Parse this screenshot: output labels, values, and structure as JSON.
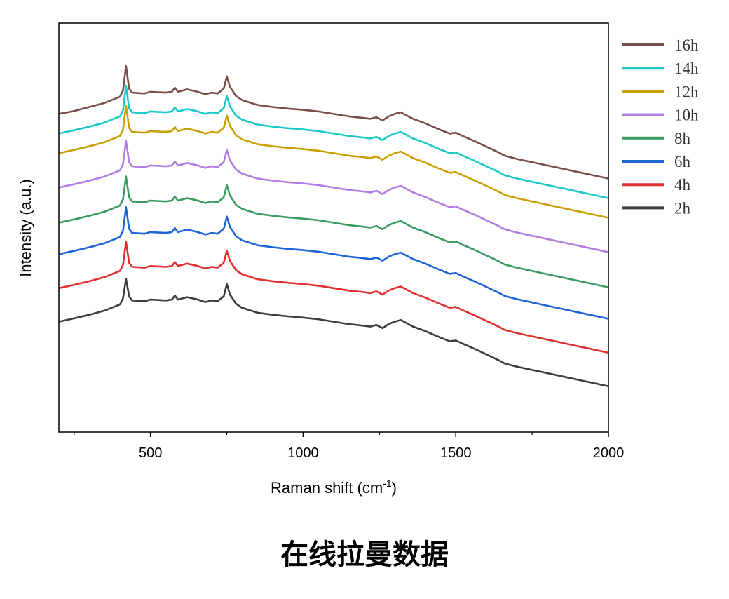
{
  "caption": "在线拉曼数据",
  "chart_data": {
    "type": "line",
    "title": "",
    "xlabel": "Raman shift (cm-1)",
    "xlabel_main": "Raman shift (cm",
    "xlabel_sup": "-1",
    "xlabel_close": ")",
    "ylabel": "Intensity (a.u.)",
    "xlim": [
      200,
      2000
    ],
    "xticks": [
      500,
      1000,
      1500,
      2000
    ],
    "xtick_labels": [
      "500",
      "1000",
      "1500",
      "2000"
    ],
    "y_ticks_shown": false,
    "grid": false,
    "legend_position": "right",
    "x": [
      200,
      250,
      300,
      350,
      400,
      410,
      420,
      430,
      440,
      480,
      500,
      550,
      570,
      580,
      590,
      620,
      650,
      680,
      700,
      720,
      740,
      750,
      760,
      780,
      800,
      850,
      900,
      950,
      1000,
      1050,
      1100,
      1150,
      1200,
      1220,
      1240,
      1260,
      1280,
      1300,
      1320,
      1340,
      1360,
      1400,
      1440,
      1480,
      1500,
      1520,
      1560,
      1600,
      1640,
      1660,
      1700,
      1750,
      1800,
      1850,
      1900,
      1950,
      2000
    ],
    "series": [
      {
        "name": "16h",
        "color": "#7a4f4b",
        "values": [
          7.78,
          7.85,
          7.95,
          8.05,
          8.2,
          8.35,
          8.95,
          8.4,
          8.3,
          8.28,
          8.32,
          8.3,
          8.32,
          8.42,
          8.32,
          8.38,
          8.33,
          8.26,
          8.3,
          8.28,
          8.4,
          8.7,
          8.45,
          8.22,
          8.12,
          8.0,
          7.95,
          7.91,
          7.88,
          7.84,
          7.78,
          7.72,
          7.68,
          7.66,
          7.7,
          7.62,
          7.72,
          7.78,
          7.82,
          7.74,
          7.66,
          7.55,
          7.42,
          7.3,
          7.32,
          7.25,
          7.12,
          6.98,
          6.84,
          6.76,
          6.68,
          6.6,
          6.52,
          6.44,
          6.36,
          6.28,
          6.2
        ]
      },
      {
        "name": "14h",
        "color": "#1ec8c8",
        "values": [
          7.3,
          7.38,
          7.47,
          7.57,
          7.72,
          7.87,
          8.47,
          7.92,
          7.82,
          7.8,
          7.84,
          7.82,
          7.84,
          7.94,
          7.84,
          7.9,
          7.85,
          7.78,
          7.82,
          7.8,
          7.92,
          8.22,
          7.97,
          7.74,
          7.64,
          7.52,
          7.47,
          7.43,
          7.4,
          7.36,
          7.3,
          7.24,
          7.2,
          7.18,
          7.22,
          7.14,
          7.24,
          7.3,
          7.34,
          7.26,
          7.18,
          7.07,
          6.94,
          6.82,
          6.84,
          6.77,
          6.64,
          6.5,
          6.36,
          6.28,
          6.2,
          6.12,
          6.04,
          5.96,
          5.88,
          5.8,
          5.72
        ]
      },
      {
        "name": "12h",
        "color": "#c9a000",
        "values": [
          6.82,
          6.9,
          6.99,
          7.09,
          7.24,
          7.39,
          7.99,
          7.44,
          7.34,
          7.32,
          7.36,
          7.34,
          7.36,
          7.46,
          7.36,
          7.42,
          7.37,
          7.3,
          7.34,
          7.32,
          7.44,
          7.74,
          7.49,
          7.26,
          7.16,
          7.04,
          6.99,
          6.95,
          6.92,
          6.88,
          6.82,
          6.76,
          6.72,
          6.7,
          6.74,
          6.66,
          6.76,
          6.82,
          6.86,
          6.78,
          6.7,
          6.59,
          6.46,
          6.34,
          6.36,
          6.29,
          6.16,
          6.02,
          5.88,
          5.8,
          5.72,
          5.64,
          5.56,
          5.48,
          5.4,
          5.32,
          5.24
        ]
      },
      {
        "name": "10h",
        "color": "#b07ee0",
        "values": [
          5.98,
          6.06,
          6.15,
          6.25,
          6.4,
          6.55,
          7.12,
          6.6,
          6.5,
          6.48,
          6.52,
          6.5,
          6.52,
          6.62,
          6.52,
          6.58,
          6.53,
          6.46,
          6.5,
          6.48,
          6.6,
          6.9,
          6.65,
          6.42,
          6.32,
          6.2,
          6.15,
          6.11,
          6.08,
          6.04,
          5.98,
          5.92,
          5.88,
          5.86,
          5.9,
          5.82,
          5.92,
          5.98,
          6.02,
          5.94,
          5.86,
          5.75,
          5.62,
          5.5,
          5.52,
          5.45,
          5.32,
          5.18,
          5.04,
          4.96,
          4.88,
          4.8,
          4.72,
          4.64,
          4.56,
          4.48,
          4.4
        ]
      },
      {
        "name": "8h",
        "color": "#3a9c5e",
        "values": [
          5.12,
          5.2,
          5.29,
          5.39,
          5.54,
          5.69,
          6.25,
          5.74,
          5.64,
          5.62,
          5.66,
          5.64,
          5.66,
          5.76,
          5.66,
          5.72,
          5.67,
          5.6,
          5.64,
          5.62,
          5.74,
          6.04,
          5.79,
          5.56,
          5.46,
          5.34,
          5.29,
          5.25,
          5.22,
          5.18,
          5.12,
          5.06,
          5.02,
          5.0,
          5.04,
          4.96,
          5.06,
          5.12,
          5.16,
          5.08,
          5.0,
          4.89,
          4.76,
          4.64,
          4.66,
          4.59,
          4.46,
          4.32,
          4.18,
          4.1,
          4.02,
          3.94,
          3.86,
          3.78,
          3.7,
          3.62,
          3.54
        ]
      },
      {
        "name": "6h",
        "color": "#1f64d6",
        "values": [
          4.35,
          4.43,
          4.52,
          4.62,
          4.77,
          4.92,
          5.5,
          4.97,
          4.87,
          4.85,
          4.89,
          4.87,
          4.89,
          4.99,
          4.89,
          4.95,
          4.9,
          4.83,
          4.87,
          4.85,
          4.97,
          5.27,
          5.02,
          4.79,
          4.69,
          4.57,
          4.52,
          4.48,
          4.45,
          4.41,
          4.35,
          4.29,
          4.25,
          4.23,
          4.27,
          4.19,
          4.29,
          4.35,
          4.39,
          4.31,
          4.23,
          4.12,
          3.99,
          3.87,
          3.89,
          3.82,
          3.69,
          3.55,
          3.41,
          3.33,
          3.25,
          3.17,
          3.09,
          3.01,
          2.93,
          2.85,
          2.77
        ]
      },
      {
        "name": "4h",
        "color": "#e03030",
        "values": [
          3.52,
          3.6,
          3.69,
          3.79,
          3.94,
          4.09,
          4.65,
          4.14,
          4.04,
          4.02,
          4.06,
          4.04,
          4.06,
          4.16,
          4.06,
          4.12,
          4.07,
          4.0,
          4.04,
          4.02,
          4.14,
          4.44,
          4.19,
          3.96,
          3.86,
          3.74,
          3.69,
          3.65,
          3.62,
          3.58,
          3.52,
          3.46,
          3.42,
          3.4,
          3.44,
          3.36,
          3.46,
          3.52,
          3.56,
          3.48,
          3.4,
          3.29,
          3.16,
          3.04,
          3.06,
          2.99,
          2.86,
          2.72,
          2.58,
          2.5,
          2.42,
          2.34,
          2.26,
          2.18,
          2.1,
          2.02,
          1.94
        ]
      },
      {
        "name": "2h",
        "color": "#3d3d3d",
        "values": [
          2.7,
          2.78,
          2.87,
          2.97,
          3.12,
          3.27,
          3.75,
          3.32,
          3.22,
          3.2,
          3.24,
          3.22,
          3.24,
          3.34,
          3.24,
          3.3,
          3.25,
          3.18,
          3.22,
          3.2,
          3.32,
          3.62,
          3.37,
          3.14,
          3.04,
          2.92,
          2.87,
          2.83,
          2.8,
          2.76,
          2.7,
          2.64,
          2.6,
          2.58,
          2.62,
          2.54,
          2.64,
          2.7,
          2.74,
          2.66,
          2.58,
          2.47,
          2.34,
          2.22,
          2.24,
          2.17,
          2.04,
          1.9,
          1.76,
          1.68,
          1.6,
          1.52,
          1.44,
          1.36,
          1.28,
          1.2,
          1.12
        ]
      }
    ]
  }
}
